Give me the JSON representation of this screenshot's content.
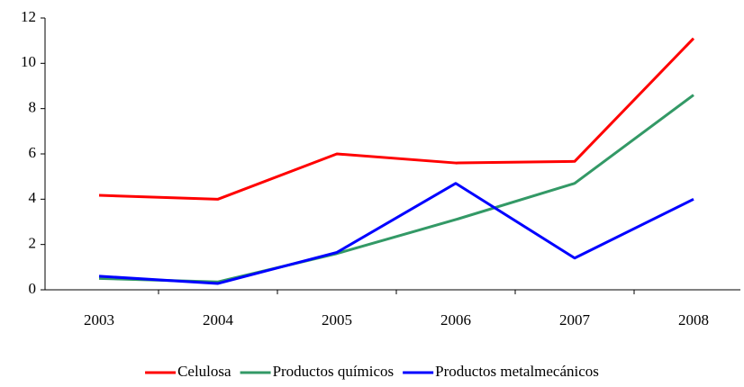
{
  "chart_data": {
    "type": "line",
    "categories": [
      "2003",
      "2004",
      "2005",
      "2006",
      "2007",
      "2008"
    ],
    "series": [
      {
        "name": "Celulosa",
        "color": "#ff0000",
        "values": [
          4.17,
          4.0,
          6.0,
          5.6,
          5.67,
          11.1
        ]
      },
      {
        "name": "Productos químicos",
        "color": "#339966",
        "values": [
          0.5,
          0.35,
          1.6,
          3.1,
          4.7,
          8.6
        ]
      },
      {
        "name": "Productos metalmecánicos",
        "color": "#0000ff",
        "values": [
          0.6,
          0.28,
          1.65,
          4.7,
          1.4,
          4.0
        ]
      }
    ],
    "ylim": [
      0,
      12
    ],
    "yticks": [
      0,
      2,
      4,
      6,
      8,
      10,
      12
    ],
    "grid": false,
    "legend": "bottom"
  }
}
